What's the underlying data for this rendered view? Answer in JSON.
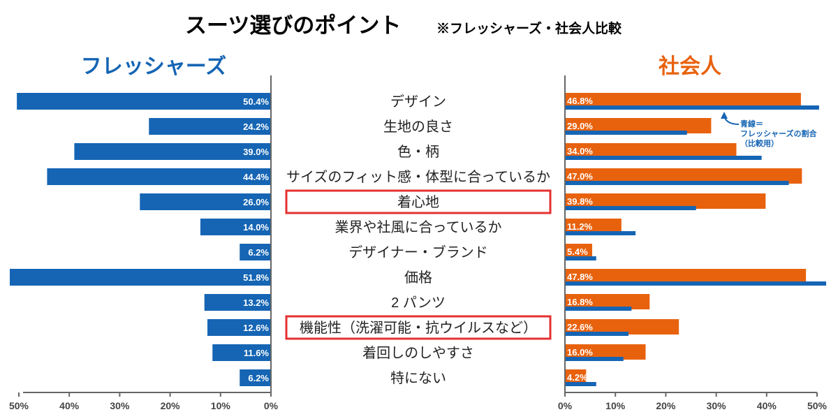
{
  "header": {
    "title": "スーツ選びのポイント",
    "subtitle": "※フレッシャーズ・社会人比較"
  },
  "colors": {
    "fresh": "#1565b4",
    "social": "#e8620e",
    "highlight": "#e53030",
    "axis": "#666666"
  },
  "chart_data": {
    "type": "bar",
    "orientation": "horizontal",
    "categories": [
      "デザイン",
      "生地の良さ",
      "色・柄",
      "サイズのフィット感・体型に合っているか",
      "着心地",
      "業界や社風に合っているか",
      "デザイナー・ブランド",
      "価格",
      "2 パンツ",
      "機能性（洗濯可能・抗ウイルスなど）",
      "着回しのしやすさ",
      "特にない"
    ],
    "highlighted_categories": [
      "着心地",
      "機能性（洗濯可能・抗ウイルスなど）"
    ],
    "series": [
      {
        "name": "フレッシャーズ",
        "values": [
          50.4,
          24.2,
          39.0,
          44.4,
          26.0,
          14.0,
          6.2,
          51.8,
          13.2,
          12.6,
          11.6,
          6.2
        ],
        "labels": [
          "50.4%",
          "24.2%",
          "39.0%",
          "44.4%",
          "26.0%",
          "14.0%",
          "6.2%",
          "51.8%",
          "13.2%",
          "12.6%",
          "11.6%",
          "6.2%"
        ]
      },
      {
        "name": "社会人",
        "values": [
          46.8,
          29.0,
          34.0,
          47.0,
          39.8,
          11.2,
          5.4,
          47.8,
          16.8,
          22.6,
          16.0,
          4.2
        ],
        "labels": [
          "46.8%",
          "29.0%",
          "34.0%",
          "47.0%",
          "39.8%",
          "11.2%",
          "5.4%",
          "47.8%",
          "16.8%",
          "22.6%",
          "16.0%",
          "4.2%"
        ]
      }
    ],
    "comparison_note": [
      "青線＝",
      "フレッシャーズの割合",
      "（比較用）"
    ],
    "left_axis": {
      "ticks": [
        "50%",
        "40%",
        "30%",
        "20%",
        "10%",
        "0%"
      ],
      "range": [
        0,
        50
      ],
      "reversed": true
    },
    "right_axis": {
      "ticks": [
        "0%",
        "10%",
        "20%",
        "30%",
        "40%",
        "50%"
      ],
      "range": [
        0,
        50
      ]
    }
  }
}
